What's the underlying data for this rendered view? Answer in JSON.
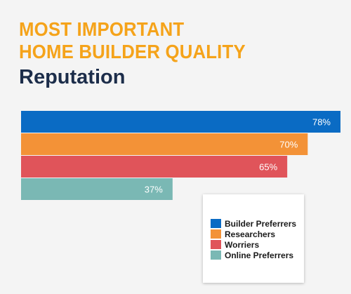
{
  "header": {
    "title_line1": "MOST IMPORTANT",
    "title_line2": "HOME BUILDER QUALITY",
    "subtitle": "Reputation"
  },
  "colors": {
    "title": "#f5a31a",
    "subtitle": "#1c2d4a"
  },
  "chart_data": {
    "type": "bar",
    "orientation": "horizontal",
    "categories": [
      "Builder Preferrers",
      "Researchers",
      "Worriers",
      "Online Preferrers"
    ],
    "values": [
      78,
      70,
      65,
      37
    ],
    "value_labels": [
      "78%",
      "70%",
      "65%",
      "37%"
    ],
    "colors": [
      "#0a6bc4",
      "#f39237",
      "#e0545a",
      "#7ab8b4"
    ],
    "xlim": [
      0,
      78
    ],
    "grid": false,
    "legend": {
      "placement": "bottom-right",
      "entries": [
        "Builder Preferrers",
        "Researchers",
        "Worriers",
        "Online Preferrers"
      ]
    }
  }
}
